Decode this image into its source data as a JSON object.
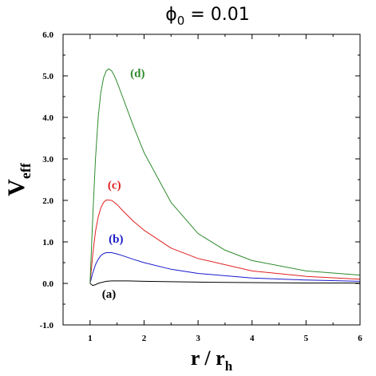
{
  "chart_data": {
    "type": "line",
    "title": {
      "main": "ϕ",
      "sub": "0",
      "rest": " = 0.01"
    },
    "xlabel": {
      "main": "r / r",
      "sub": "h"
    },
    "ylabel": {
      "main": "V",
      "sub": "eff"
    },
    "xlim": [
      0.5,
      6
    ],
    "ylim": [
      -1.0,
      6.0
    ],
    "xticks": [
      1,
      2,
      3,
      4,
      5,
      6
    ],
    "xtick_labels": [
      "1",
      "2",
      "3",
      "4",
      "5",
      "6"
    ],
    "yticks": [
      -1,
      0,
      1,
      2,
      3,
      4,
      5,
      6
    ],
    "ytick_labels": [
      "-1.0",
      "0.0",
      "1.0",
      "2.0",
      "3.0",
      "4.0",
      "5.0",
      "6.0"
    ],
    "grid": false,
    "series": [
      {
        "name": "(a)",
        "color": "#000000",
        "x": [
          1.0,
          1.05,
          1.1,
          1.15,
          1.2,
          1.3,
          1.4,
          1.5,
          1.7,
          2.0,
          2.5,
          3.0,
          4.0,
          5.0,
          6.0
        ],
        "y": [
          0.0,
          -0.05,
          -0.03,
          0.0,
          0.02,
          0.05,
          0.06,
          0.06,
          0.06,
          0.05,
          0.04,
          0.03,
          0.02,
          0.01,
          0.01
        ],
        "label_at": [
          1.35,
          -0.35
        ]
      },
      {
        "name": "(b)",
        "color": "#1a1acc",
        "x": [
          1.0,
          1.05,
          1.1,
          1.15,
          1.2,
          1.25,
          1.3,
          1.4,
          1.5,
          1.6,
          1.8,
          2.0,
          2.5,
          3.0,
          4.0,
          5.0,
          6.0
        ],
        "y": [
          0.0,
          0.25,
          0.45,
          0.58,
          0.67,
          0.72,
          0.74,
          0.74,
          0.71,
          0.67,
          0.58,
          0.5,
          0.34,
          0.24,
          0.13,
          0.08,
          0.05
        ],
        "label_at": [
          1.48,
          0.98
        ]
      },
      {
        "name": "(c)",
        "color": "#e02020",
        "x": [
          1.0,
          1.05,
          1.1,
          1.15,
          1.2,
          1.25,
          1.3,
          1.4,
          1.5,
          1.6,
          1.8,
          2.0,
          2.5,
          3.0,
          4.0,
          5.0,
          6.0
        ],
        "y": [
          0.0,
          0.7,
          1.25,
          1.6,
          1.82,
          1.95,
          2.01,
          2.0,
          1.9,
          1.76,
          1.5,
          1.28,
          0.85,
          0.6,
          0.3,
          0.17,
          0.1
        ],
        "label_at": [
          1.45,
          2.28
        ]
      },
      {
        "name": "(d)",
        "color": "#2e8b2e",
        "x": [
          1.0,
          1.05,
          1.1,
          1.15,
          1.2,
          1.25,
          1.3,
          1.35,
          1.4,
          1.45,
          1.5,
          1.6,
          1.8,
          2.0,
          2.5,
          3.0,
          3.5,
          4.0,
          5.0,
          6.0
        ],
        "y": [
          0.0,
          1.6,
          3.0,
          4.0,
          4.6,
          4.95,
          5.12,
          5.17,
          5.12,
          5.0,
          4.85,
          4.5,
          3.8,
          3.15,
          1.95,
          1.2,
          0.8,
          0.55,
          0.3,
          0.2
        ],
        "label_at": [
          1.88,
          4.97
        ]
      }
    ]
  }
}
